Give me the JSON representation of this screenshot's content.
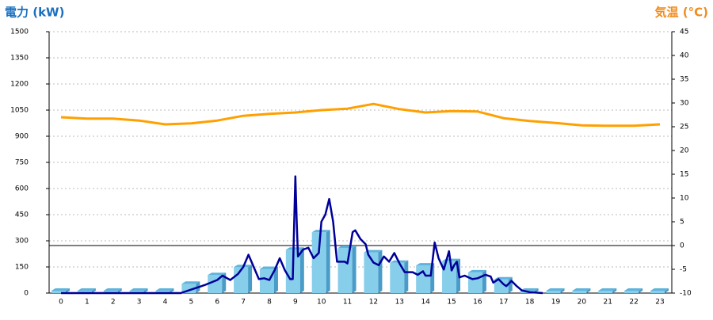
{
  "chart_data": {
    "type": "bar",
    "y_title": "電力 (kW)",
    "y2_title": "気温 (°C)",
    "categories": [
      "0",
      "1",
      "2",
      "3",
      "4",
      "5",
      "6",
      "7",
      "8",
      "9",
      "10",
      "11",
      "12",
      "13",
      "14",
      "15",
      "16",
      "17",
      "18",
      "19",
      "20",
      "21",
      "22",
      "23"
    ],
    "ylim": [
      0,
      1500
    ],
    "yticks": [
      0,
      150,
      300,
      450,
      600,
      750,
      900,
      1050,
      1200,
      1350,
      1500
    ],
    "y2lim": [
      -10,
      45
    ],
    "y2ticks": [
      -10,
      -5,
      0,
      5,
      10,
      15,
      20,
      25,
      30,
      35,
      40,
      45
    ],
    "grid": true,
    "series": [
      {
        "type": "bar",
        "color": "#87ceeb",
        "values": [
          0,
          0,
          0,
          0,
          0,
          40,
          90,
          135,
          125,
          235,
          335,
          245,
          220,
          160,
          145,
          170,
          105,
          65,
          0,
          0,
          0,
          0,
          0,
          0
        ]
      },
      {
        "type": "line",
        "color": "#000099",
        "x": [
          0,
          1,
          2,
          3,
          4,
          4.6,
          5,
          5.5,
          6,
          6.2,
          6.5,
          6.8,
          7,
          7.2,
          7.4,
          7.6,
          7.8,
          8,
          8.2,
          8.4,
          8.6,
          8.8,
          8.9,
          9,
          9.05,
          9.1,
          9.3,
          9.5,
          9.7,
          9.9,
          10,
          10.15,
          10.3,
          10.45,
          10.6,
          10.9,
          11,
          11.2,
          11.3,
          11.5,
          11.7,
          11.8,
          12,
          12.2,
          12.4,
          12.6,
          12.8,
          13,
          13.2,
          13.5,
          13.7,
          13.9,
          14,
          14.2,
          14.35,
          14.5,
          14.7,
          14.9,
          15,
          15.1,
          15.2,
          15.3,
          15.5,
          15.8,
          16,
          16.3,
          16.5,
          16.6,
          16.8,
          17,
          17.1,
          17.3,
          17.5,
          17.7,
          18,
          18.5
        ],
        "values": [
          0,
          0,
          0,
          0,
          0,
          0,
          20,
          45,
          75,
          100,
          75,
          110,
          150,
          220,
          150,
          80,
          85,
          75,
          130,
          200,
          130,
          80,
          80,
          670,
          420,
          210,
          250,
          260,
          200,
          230,
          410,
          450,
          540,
          410,
          180,
          180,
          170,
          350,
          360,
          310,
          280,
          220,
          175,
          160,
          210,
          180,
          230,
          170,
          120,
          120,
          105,
          125,
          100,
          100,
          290,
          200,
          135,
          240,
          130,
          160,
          180,
          90,
          100,
          80,
          85,
          105,
          95,
          60,
          80,
          50,
          40,
          70,
          40,
          15,
          5,
          0
        ]
      },
      {
        "type": "line",
        "axis": "y2",
        "color": "#ffa000",
        "values": [
          27,
          26.7,
          26.7,
          26.3,
          25.5,
          25.7,
          26.3,
          27.3,
          27.7,
          28,
          28.5,
          28.8,
          29.8,
          28.7,
          28,
          28.3,
          28.2,
          26.8,
          26.2,
          25.8,
          25.3,
          25.2,
          25.2,
          25.5
        ]
      }
    ]
  }
}
